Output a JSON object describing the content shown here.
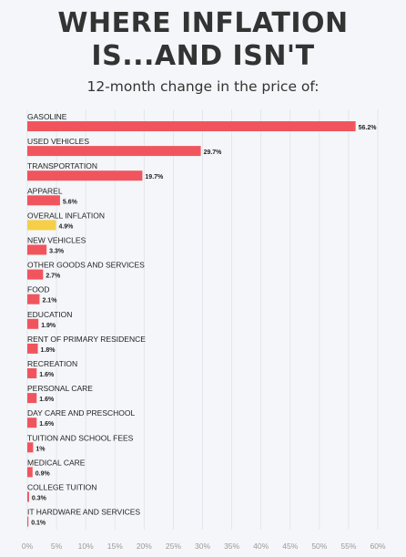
{
  "title_line1": "WHERE INFLATION",
  "title_line2": "IS...AND ISN'T",
  "subtitle": "12-month change in the price of:",
  "chart_data": {
    "type": "bar",
    "orientation": "horizontal",
    "categories": [
      "GASOLINE",
      "USED VEHICLES",
      "TRANSPORTATION",
      "APPAREL",
      "OVERALL INFLATION",
      "NEW VEHICLES",
      "OTHER GOODS AND SERVICES",
      "FOOD",
      "EDUCATION",
      "RENT OF PRIMARY RESIDENCE",
      "RECREATION",
      "PERSONAL CARE",
      "DAY CARE AND PRESCHOOL",
      "TUITION AND SCHOOL FEES",
      "MEDICAL CARE",
      "COLLEGE TUITION",
      "IT HARDWARE AND SERVICES"
    ],
    "values": [
      56.2,
      29.7,
      19.7,
      5.6,
      4.9,
      3.3,
      2.7,
      2.1,
      1.9,
      1.8,
      1.6,
      1.6,
      1.6,
      1.0,
      0.9,
      0.3,
      0.1
    ],
    "value_labels": [
      "56.2%",
      "29.7%",
      "19.7%",
      "5.6%",
      "4.9%",
      "3.3%",
      "2.7%",
      "2.1%",
      "1.9%",
      "1.8%",
      "1.6%",
      "1.6%",
      "1.6%",
      "1%",
      "0.9%",
      "0.3%",
      "0.1%"
    ],
    "highlight_index": 4,
    "xlim": [
      0,
      60
    ],
    "xticks": [
      0,
      5,
      10,
      15,
      20,
      25,
      30,
      35,
      40,
      45,
      50,
      55,
      60
    ],
    "xtick_labels": [
      "0%",
      "5%",
      "10%",
      "15%",
      "20%",
      "25%",
      "30%",
      "35%",
      "40%",
      "45%",
      "50%",
      "55%",
      "60%"
    ],
    "grid": true,
    "colors": {
      "bar": "#f0555e",
      "highlight": "#f5cf47",
      "grid": "#dfe3ea"
    }
  }
}
